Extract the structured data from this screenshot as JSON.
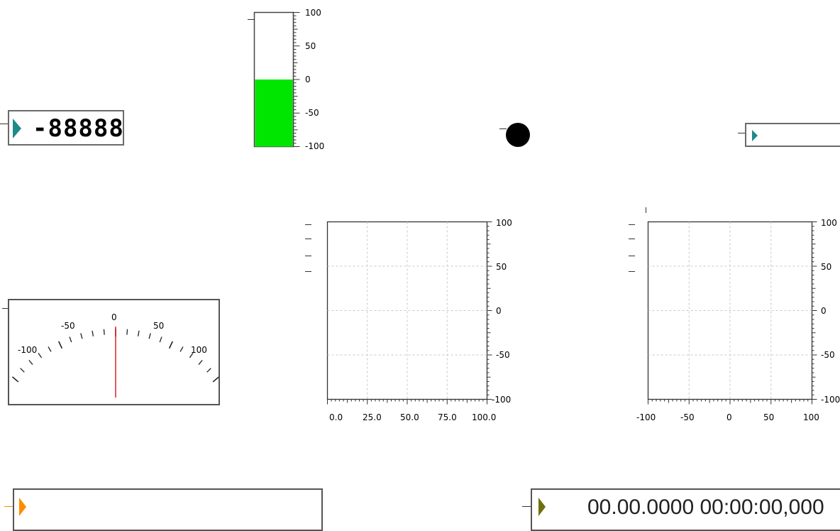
{
  "digital_display": {
    "value": "-88888",
    "accent": "#1e8a8a"
  },
  "tank": {
    "scale_labels": [
      "100",
      "50",
      "0",
      "-50",
      "-100"
    ],
    "range": [
      -100,
      100
    ],
    "level": 0,
    "fill_color": "#00e600"
  },
  "led": {
    "color": "#000000"
  },
  "text_box": {
    "value": "",
    "accent": "#1e8a8a"
  },
  "meter": {
    "scale_labels": [
      "-100",
      "-50",
      "0",
      "50",
      "100"
    ],
    "range": [
      -100,
      100
    ],
    "needle_value": 0,
    "needle_color": "#e02020"
  },
  "chart_data": [
    {
      "type": "line",
      "x_tick_labels": [
        "0.0",
        "25.0",
        "50.0",
        "75.0",
        "100.0"
      ],
      "y_tick_labels": [
        "100",
        "50",
        "0",
        "-50",
        "-100"
      ],
      "xlim": [
        0,
        100
      ],
      "ylim": [
        -100,
        100
      ],
      "grid": true,
      "series": []
    },
    {
      "type": "scatter",
      "x_tick_labels": [
        "-100",
        "-50",
        "0",
        "50",
        "100"
      ],
      "y_tick_labels": [
        "100",
        "50",
        "0",
        "-50",
        "-100"
      ],
      "xlim": [
        -100,
        100
      ],
      "ylim": [
        -100,
        100
      ],
      "grid": true,
      "series": []
    }
  ],
  "string_indicator": {
    "value": "",
    "accent": "#ff8c00"
  },
  "timestamp": {
    "value": "00.00.0000 00:00:00,000",
    "accent": "#707010"
  }
}
